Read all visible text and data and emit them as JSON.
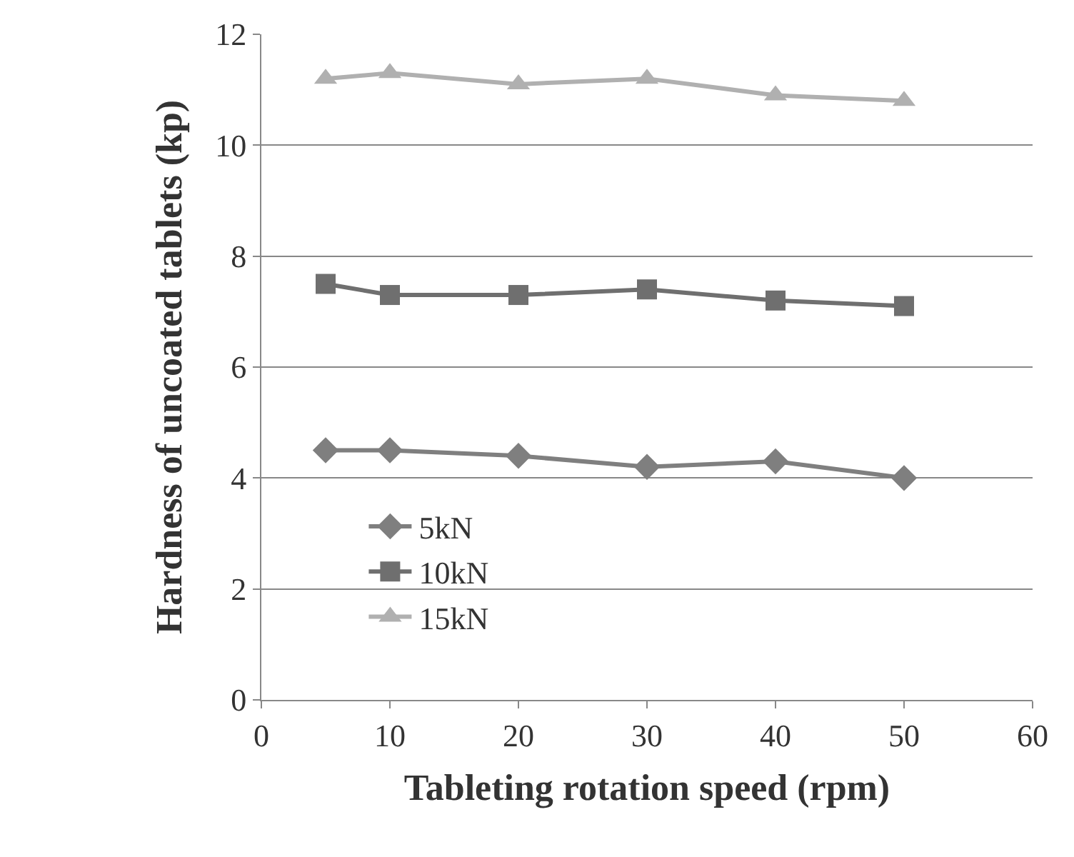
{
  "chart_data": {
    "type": "line",
    "xlabel": "Tableting rotation speed (rpm)",
    "ylabel": "Hardness of uncoated tablets (kp)",
    "x": [
      5,
      10,
      20,
      30,
      40,
      50
    ],
    "xlim": [
      0,
      60
    ],
    "xticks": [
      0,
      10,
      20,
      30,
      40,
      50,
      60
    ],
    "ylim": [
      0,
      12
    ],
    "yticks": [
      0,
      2,
      4,
      6,
      8,
      10,
      12
    ],
    "grid": "y",
    "legend": "bottom left",
    "line_style": "solid",
    "series": [
      {
        "name": "5kN",
        "color": "#7f7f7f",
        "marker": "diamond",
        "values": [
          4.5,
          4.5,
          4.4,
          4.2,
          4.3,
          4.0
        ]
      },
      {
        "name": "10kN",
        "color": "#6f6f6f",
        "marker": "square",
        "values": [
          7.5,
          7.3,
          7.3,
          7.4,
          7.2,
          7.1
        ]
      },
      {
        "name": "15kN",
        "color": "#b0b0b0",
        "marker": "triangle",
        "values": [
          11.2,
          11.3,
          11.1,
          11.2,
          10.9,
          10.8
        ]
      }
    ]
  }
}
